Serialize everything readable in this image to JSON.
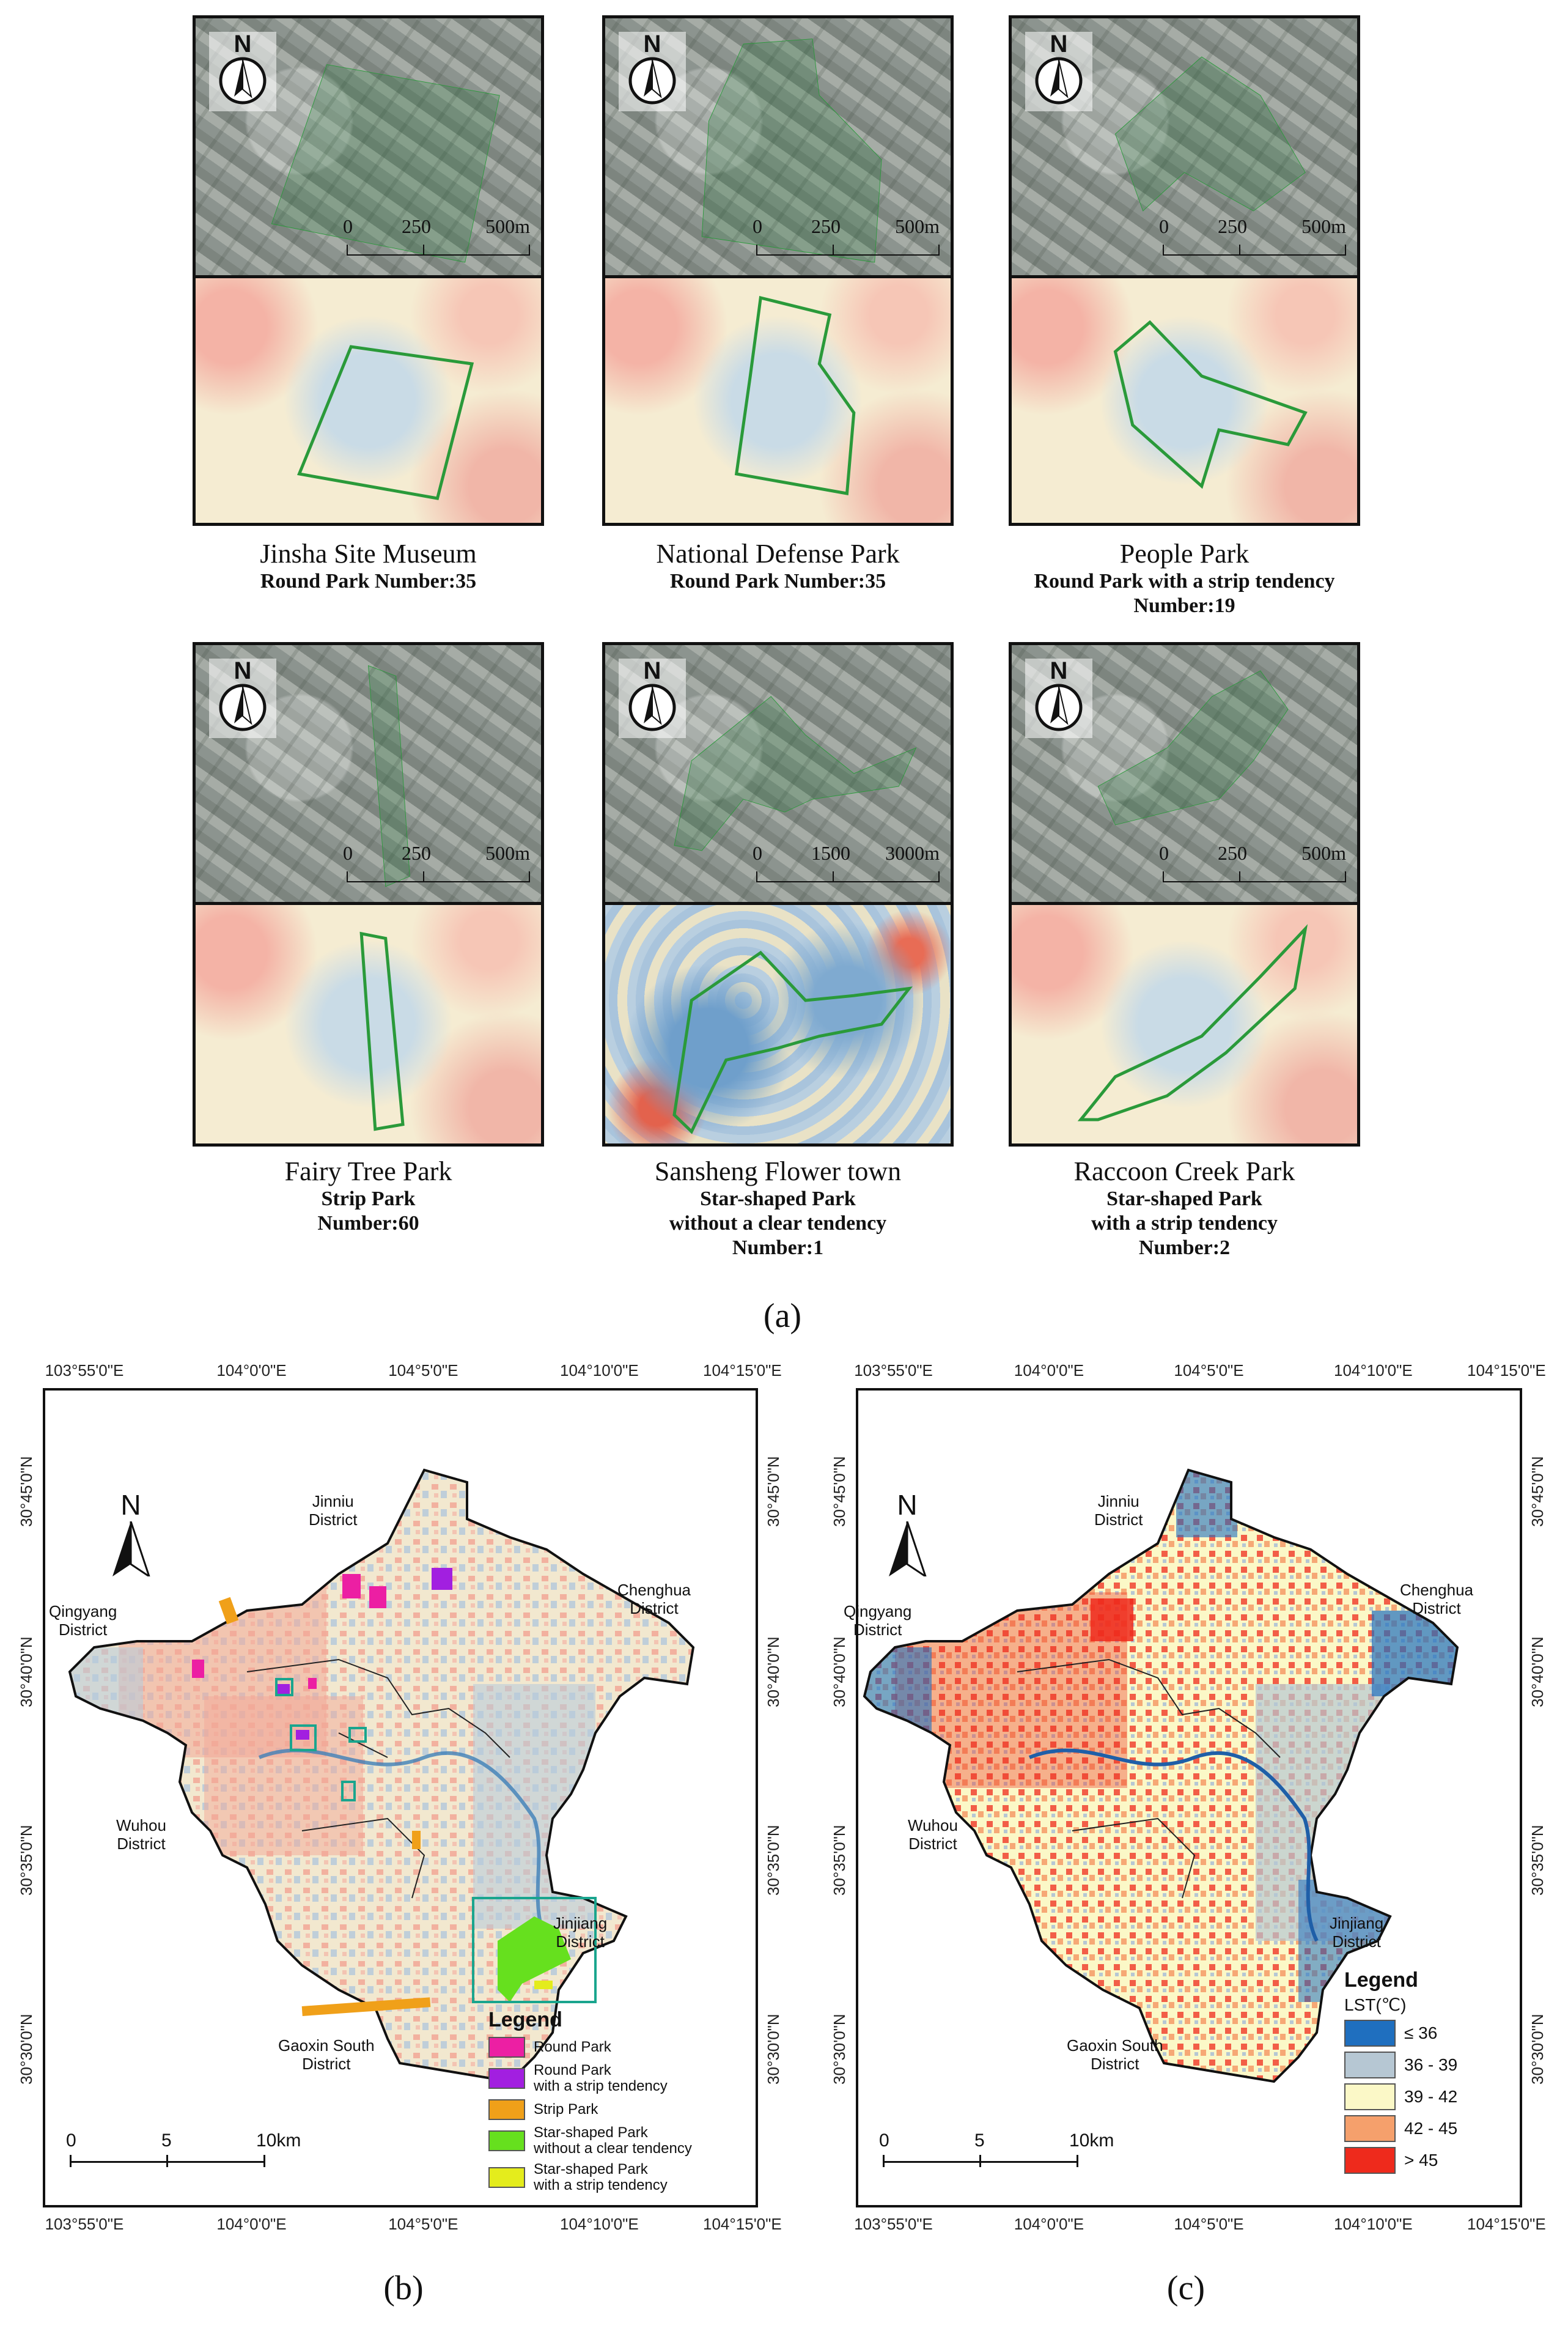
{
  "panel_a": {
    "label": "(a)",
    "parks": [
      {
        "name": "Jinsha Site Museum",
        "type_lines": [
          "Round Park  Number:35"
        ],
        "scale": [
          "0",
          "250",
          "500m"
        ],
        "north": "N"
      },
      {
        "name": "National Defense Park",
        "type_lines": [
          "Round Park  Number:35"
        ],
        "scale": [
          "0",
          "250",
          "500m"
        ],
        "north": "N"
      },
      {
        "name": "People Park",
        "type_lines": [
          "Round Park with a strip tendency",
          "Number:19"
        ],
        "scale": [
          "0",
          "250",
          "500m"
        ],
        "north": "N"
      },
      {
        "name": "Fairy Tree Park",
        "type_lines": [
          "Strip Park",
          "Number:60"
        ],
        "scale": [
          "0",
          "250",
          "500m"
        ],
        "north": "N"
      },
      {
        "name": "Sansheng Flower town",
        "type_lines": [
          "Star-shaped Park",
          "without a clear tendency",
          "Number:1"
        ],
        "scale": [
          "0",
          "1500",
          "3000m"
        ],
        "north": "N"
      },
      {
        "name": "Raccoon Creek Park",
        "type_lines": [
          "Star-shaped Park",
          "with a strip tendency",
          "Number:2"
        ],
        "scale": [
          "0",
          "250",
          "500m"
        ],
        "north": "N"
      }
    ]
  },
  "panel_b": {
    "label": "(b)",
    "north": "N",
    "top_coords": [
      "103°55'0\"E",
      "104°0'0\"E",
      "104°5'0\"E",
      "104°10'0\"E",
      "104°15'0\"E"
    ],
    "bottom_coords": [
      "103°55'0\"E",
      "104°0'0\"E",
      "104°5'0\"E",
      "104°10'0\"E",
      "104°15'0\"E"
    ],
    "left_coords": [
      "30°45'0\"N",
      "30°40'0\"N",
      "30°35'0\"N",
      "30°30'0\"N"
    ],
    "right_coords": [
      "30°45'0\"N",
      "30°40'0\"N",
      "30°35'0\"N",
      "30°30'0\"N"
    ],
    "districts": [
      "Jinniu\nDistrict",
      "Chenghua\nDistrict",
      "Qingyang\nDistrict",
      "Wuhou\nDistrict",
      "Jinjiang\nDistrict",
      "Gaoxin South\nDistrict"
    ],
    "scale": [
      "0",
      "5",
      "10km"
    ],
    "legend": {
      "title": "Legend",
      "items": [
        {
          "label": "Round Park",
          "color": "#ec1fa3"
        },
        {
          "label": "Round Park\nwith a strip tendency",
          "color": "#a21fe0"
        },
        {
          "label": "Strip Park",
          "color": "#f0a019"
        },
        {
          "label": "Star-shaped Park\nwithout a clear tendency",
          "color": "#66e01e"
        },
        {
          "label": "Star-shaped Park\nwith a strip tendency",
          "color": "#e4ec1c"
        }
      ]
    }
  },
  "panel_c": {
    "label": "(c)",
    "north": "N",
    "top_coords": [
      "103°55'0\"E",
      "104°0'0\"E",
      "104°5'0\"E",
      "104°10'0\"E",
      "104°15'0\"E"
    ],
    "bottom_coords": [
      "103°55'0\"E",
      "104°0'0\"E",
      "104°5'0\"E",
      "104°10'0\"E",
      "104°15'0\"E"
    ],
    "left_coords": [
      "30°45'0\"N",
      "30°40'0\"N",
      "30°35'0\"N",
      "30°30'0\"N"
    ],
    "right_coords": [
      "30°45'0\"N",
      "30°40'0\"N",
      "30°35'0\"N",
      "30°30'0\"N"
    ],
    "districts": [
      "Jinniu\nDistrict",
      "Chenghua\nDistrict",
      "Qingyang\nDistrict",
      "Wuhou\nDistrict",
      "Jinjiang\nDistrict",
      "Gaoxin South\nDistrict"
    ],
    "scale": [
      "0",
      "5",
      "10km"
    ],
    "legend": {
      "title": "Legend",
      "subtitle": "LST(℃)",
      "items": [
        {
          "label": "≤ 36",
          "color": "#1f6fbf"
        },
        {
          "label": "36 - 39",
          "color": "#b6c7d3"
        },
        {
          "label": "39 - 42",
          "color": "#fbf8c7"
        },
        {
          "label": "42 - 45",
          "color": "#f5a06c"
        },
        {
          "label": "> 45",
          "color": "#ee2a1c"
        }
      ]
    }
  },
  "colors": {
    "park_outline": "#2a9a3a",
    "frame": "#111111"
  }
}
